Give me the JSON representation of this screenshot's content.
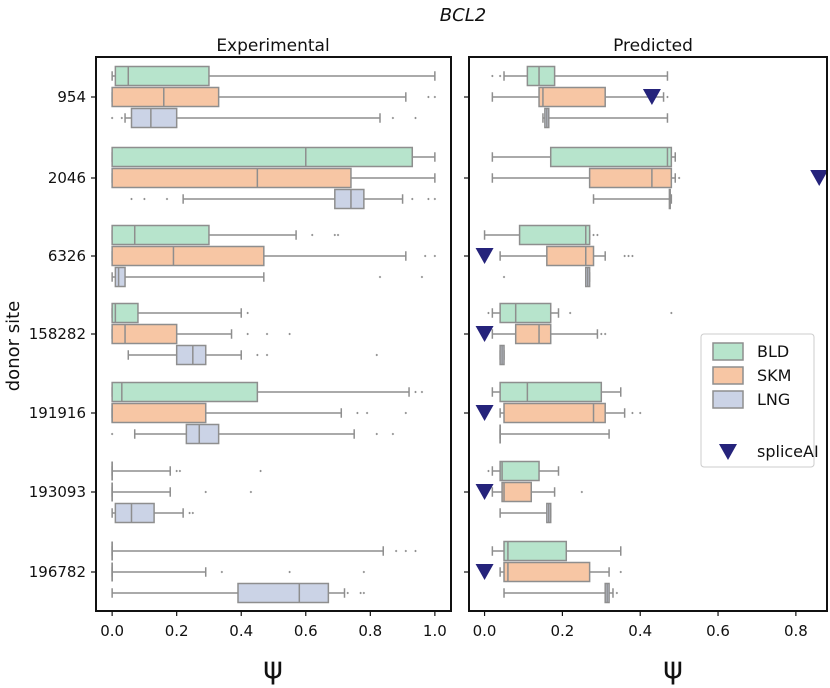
{
  "chart_data": {
    "type": "boxplot",
    "title": "BCL2",
    "ylabel": "donor site",
    "colors": {
      "BLD": "#b7e4cc",
      "SKM": "#f7c6a4",
      "LNG": "#cbd3e6",
      "spliceAI": "#25237b",
      "edge": "#8e8e8e"
    },
    "legend": {
      "placement": "right",
      "entries": [
        {
          "name": "BLD",
          "marker": "box"
        },
        {
          "name": "SKM",
          "marker": "box"
        },
        {
          "name": "LNG",
          "marker": "box"
        },
        {
          "name": "spliceAI",
          "marker": "triangle-down"
        }
      ]
    },
    "categories": [
      "954",
      "2046",
      "6326",
      "158282",
      "191916",
      "193093",
      "196782"
    ],
    "panels": [
      {
        "title": "Experimental",
        "xlabel": "ψ",
        "xlim": [
          -0.05,
          1.05
        ],
        "xticks": [
          0.0,
          0.2,
          0.4,
          0.6,
          0.8,
          1.0
        ],
        "xticklabels": [
          "0.0",
          "0.2",
          "0.4",
          "0.6",
          "0.8",
          "1.0"
        ],
        "groups": [
          {
            "site": "954",
            "boxes": [
              {
                "tissue": "BLD",
                "q1": 0.01,
                "med": 0.05,
                "q3": 0.3,
                "wlo": 0.0,
                "whi": 1.0,
                "fliers": []
              },
              {
                "tissue": "SKM",
                "q1": 0.0,
                "med": 0.16,
                "q3": 0.33,
                "wlo": 0.0,
                "whi": 0.91,
                "fliers": [
                  0.98,
                  1.0
                ]
              },
              {
                "tissue": "LNG",
                "q1": 0.06,
                "med": 0.12,
                "q3": 0.2,
                "wlo": 0.04,
                "whi": 0.83,
                "fliers": [
                  0.0,
                  0.03,
                  0.87,
                  0.94
                ]
              }
            ]
          },
          {
            "site": "2046",
            "boxes": [
              {
                "tissue": "BLD",
                "q1": 0.0,
                "med": 0.6,
                "q3": 0.93,
                "wlo": 0.0,
                "whi": 1.0,
                "fliers": []
              },
              {
                "tissue": "SKM",
                "q1": 0.0,
                "med": 0.45,
                "q3": 0.74,
                "wlo": 0.0,
                "whi": 1.0,
                "fliers": []
              },
              {
                "tissue": "LNG",
                "q1": 0.69,
                "med": 0.74,
                "q3": 0.78,
                "wlo": 0.22,
                "whi": 0.9,
                "fliers": [
                  0.06,
                  0.1,
                  0.17,
                  0.93,
                  0.98,
                  1.0
                ]
              }
            ]
          },
          {
            "site": "6326",
            "boxes": [
              {
                "tissue": "BLD",
                "q1": 0.0,
                "med": 0.07,
                "q3": 0.3,
                "wlo": 0.0,
                "whi": 0.57,
                "fliers": [
                  0.62,
                  0.69,
                  0.7
                ]
              },
              {
                "tissue": "SKM",
                "q1": 0.0,
                "med": 0.19,
                "q3": 0.47,
                "wlo": 0.0,
                "whi": 0.91,
                "fliers": [
                  0.97,
                  1.0
                ]
              },
              {
                "tissue": "LNG",
                "q1": 0.01,
                "med": 0.02,
                "q3": 0.04,
                "wlo": 0.0,
                "whi": 0.47,
                "fliers": [
                  0.83,
                  0.96
                ]
              }
            ]
          },
          {
            "site": "158282",
            "boxes": [
              {
                "tissue": "BLD",
                "q1": 0.0,
                "med": 0.01,
                "q3": 0.08,
                "wlo": 0.0,
                "whi": 0.4,
                "fliers": [
                  0.42
                ]
              },
              {
                "tissue": "SKM",
                "q1": 0.0,
                "med": 0.04,
                "q3": 0.2,
                "wlo": 0.0,
                "whi": 0.37,
                "fliers": [
                  0.42,
                  0.48,
                  0.55
                ]
              },
              {
                "tissue": "LNG",
                "q1": 0.2,
                "med": 0.25,
                "q3": 0.29,
                "wlo": 0.05,
                "whi": 0.4,
                "fliers": [
                  0.45,
                  0.48,
                  0.82
                ]
              }
            ]
          },
          {
            "site": "191916",
            "boxes": [
              {
                "tissue": "BLD",
                "q1": 0.0,
                "med": 0.03,
                "q3": 0.45,
                "wlo": 0.0,
                "whi": 0.92,
                "fliers": [
                  0.94,
                  0.96
                ]
              },
              {
                "tissue": "SKM",
                "q1": 0.0,
                "med": 0.0,
                "q3": 0.29,
                "wlo": 0.0,
                "whi": 0.71,
                "fliers": [
                  0.76,
                  0.79,
                  0.91
                ]
              },
              {
                "tissue": "LNG",
                "q1": 0.23,
                "med": 0.27,
                "q3": 0.33,
                "wlo": 0.07,
                "whi": 0.75,
                "fliers": [
                  0.0,
                  0.82,
                  0.87
                ]
              }
            ]
          },
          {
            "site": "193093",
            "boxes": [
              {
                "tissue": "BLD",
                "q1": 0.0,
                "med": 0.0,
                "q3": 0.0,
                "wlo": 0.0,
                "whi": 0.18,
                "fliers": [
                  0.2,
                  0.21,
                  0.46
                ]
              },
              {
                "tissue": "SKM",
                "q1": 0.0,
                "med": 0.0,
                "q3": 0.0,
                "wlo": 0.0,
                "whi": 0.18,
                "fliers": [
                  0.29,
                  0.43
                ]
              },
              {
                "tissue": "LNG",
                "q1": 0.01,
                "med": 0.06,
                "q3": 0.13,
                "wlo": 0.0,
                "whi": 0.22,
                "fliers": [
                  0.24,
                  0.25
                ]
              }
            ]
          },
          {
            "site": "196782",
            "boxes": [
              {
                "tissue": "BLD",
                "q1": 0.0,
                "med": 0.0,
                "q3": 0.0,
                "wlo": 0.0,
                "whi": 0.84,
                "fliers": [
                  0.88,
                  0.91,
                  0.94
                ]
              },
              {
                "tissue": "SKM",
                "q1": 0.0,
                "med": 0.0,
                "q3": 0.0,
                "wlo": 0.0,
                "whi": 0.29,
                "fliers": [
                  0.34,
                  0.55,
                  0.78
                ]
              },
              {
                "tissue": "LNG",
                "q1": 0.39,
                "med": 0.58,
                "q3": 0.67,
                "wlo": 0.0,
                "whi": 0.72,
                "fliers": [
                  0.73,
                  0.77,
                  0.78
                ]
              }
            ]
          }
        ],
        "spliceai": []
      },
      {
        "title": "Predicted",
        "xlabel": "ψ",
        "xlim": [
          -0.04,
          0.88
        ],
        "xticks": [
          0.0,
          0.2,
          0.4,
          0.6,
          0.8
        ],
        "xticklabels": [
          "0.0",
          "0.2",
          "0.4",
          "0.6",
          "0.8"
        ],
        "groups": [
          {
            "site": "954",
            "boxes": [
              {
                "tissue": "BLD",
                "q1": 0.11,
                "med": 0.14,
                "q3": 0.18,
                "wlo": 0.05,
                "whi": 0.47,
                "fliers": [
                  0.02,
                  0.04
                ]
              },
              {
                "tissue": "SKM",
                "q1": 0.14,
                "med": 0.15,
                "q3": 0.31,
                "wlo": 0.02,
                "whi": 0.46,
                "fliers": [
                  0.47
                ]
              },
              {
                "tissue": "LNG",
                "q1": 0.155,
                "med": 0.16,
                "q3": 0.165,
                "wlo": 0.15,
                "whi": 0.47,
                "fliers": []
              }
            ]
          },
          {
            "site": "2046",
            "boxes": [
              {
                "tissue": "BLD",
                "q1": 0.17,
                "med": 0.47,
                "q3": 0.48,
                "wlo": 0.02,
                "whi": 0.49,
                "fliers": []
              },
              {
                "tissue": "SKM",
                "q1": 0.27,
                "med": 0.43,
                "q3": 0.48,
                "wlo": 0.02,
                "whi": 0.49,
                "fliers": [
                  0.5
                ]
              },
              {
                "tissue": "LNG",
                "q1": 0.475,
                "med": 0.476,
                "q3": 0.477,
                "wlo": 0.28,
                "whi": 0.48,
                "fliers": []
              }
            ]
          },
          {
            "site": "6326",
            "boxes": [
              {
                "tissue": "BLD",
                "q1": 0.09,
                "med": 0.26,
                "q3": 0.27,
                "wlo": 0.0,
                "whi": 0.27,
                "fliers": [
                  0.28,
                  0.29
                ]
              },
              {
                "tissue": "SKM",
                "q1": 0.16,
                "med": 0.26,
                "q3": 0.28,
                "wlo": 0.04,
                "whi": 0.31,
                "fliers": [
                  0.36,
                  0.37,
                  0.38
                ]
              },
              {
                "tissue": "LNG",
                "q1": 0.26,
                "med": 0.265,
                "q3": 0.27,
                "wlo": 0.26,
                "whi": 0.27,
                "fliers": [
                  0.05
                ]
              }
            ]
          },
          {
            "site": "158282",
            "boxes": [
              {
                "tissue": "BLD",
                "q1": 0.04,
                "med": 0.08,
                "q3": 0.17,
                "wlo": 0.02,
                "whi": 0.19,
                "fliers": [
                  0.01,
                  0.22,
                  0.48
                ]
              },
              {
                "tissue": "SKM",
                "q1": 0.08,
                "med": 0.14,
                "q3": 0.17,
                "wlo": 0.02,
                "whi": 0.29,
                "fliers": [
                  0.3,
                  0.31
                ]
              },
              {
                "tissue": "LNG",
                "q1": 0.04,
                "med": 0.045,
                "q3": 0.05,
                "wlo": 0.04,
                "whi": 0.05,
                "fliers": []
              }
            ]
          },
          {
            "site": "191916",
            "boxes": [
              {
                "tissue": "BLD",
                "q1": 0.04,
                "med": 0.11,
                "q3": 0.3,
                "wlo": 0.02,
                "whi": 0.35,
                "fliers": []
              },
              {
                "tissue": "SKM",
                "q1": 0.05,
                "med": 0.28,
                "q3": 0.31,
                "wlo": 0.04,
                "whi": 0.36,
                "fliers": [
                  0.38,
                  0.4
                ]
              },
              {
                "tissue": "LNG",
                "q1": 0.04,
                "med": 0.04,
                "q3": 0.04,
                "wlo": 0.04,
                "whi": 0.32,
                "fliers": []
              }
            ]
          },
          {
            "site": "193093",
            "boxes": [
              {
                "tissue": "BLD",
                "q1": 0.04,
                "med": 0.045,
                "q3": 0.14,
                "wlo": 0.02,
                "whi": 0.19,
                "fliers": [
                  0.01
                ]
              },
              {
                "tissue": "SKM",
                "q1": 0.045,
                "med": 0.05,
                "q3": 0.12,
                "wlo": 0.02,
                "whi": 0.18,
                "fliers": [
                  0.25
                ]
              },
              {
                "tissue": "LNG",
                "q1": 0.16,
                "med": 0.165,
                "q3": 0.17,
                "wlo": 0.04,
                "whi": 0.17,
                "fliers": []
              }
            ]
          },
          {
            "site": "196782",
            "boxes": [
              {
                "tissue": "BLD",
                "q1": 0.05,
                "med": 0.06,
                "q3": 0.21,
                "wlo": 0.02,
                "whi": 0.35,
                "fliers": []
              },
              {
                "tissue": "SKM",
                "q1": 0.05,
                "med": 0.06,
                "q3": 0.27,
                "wlo": 0.04,
                "whi": 0.32,
                "fliers": [
                  0.35
                ]
              },
              {
                "tissue": "LNG",
                "q1": 0.31,
                "med": 0.315,
                "q3": 0.32,
                "wlo": 0.05,
                "whi": 0.33,
                "fliers": [
                  0.34
                ]
              }
            ]
          }
        ],
        "spliceai": [
          {
            "site": "954",
            "value": 0.43
          },
          {
            "site": "2046",
            "value": 0.86
          },
          {
            "site": "6326",
            "value": 0.0
          },
          {
            "site": "158282",
            "value": 0.0
          },
          {
            "site": "191916",
            "value": 0.0
          },
          {
            "site": "193093",
            "value": 0.0
          },
          {
            "site": "196782",
            "value": 0.0
          }
        ]
      }
    ]
  }
}
